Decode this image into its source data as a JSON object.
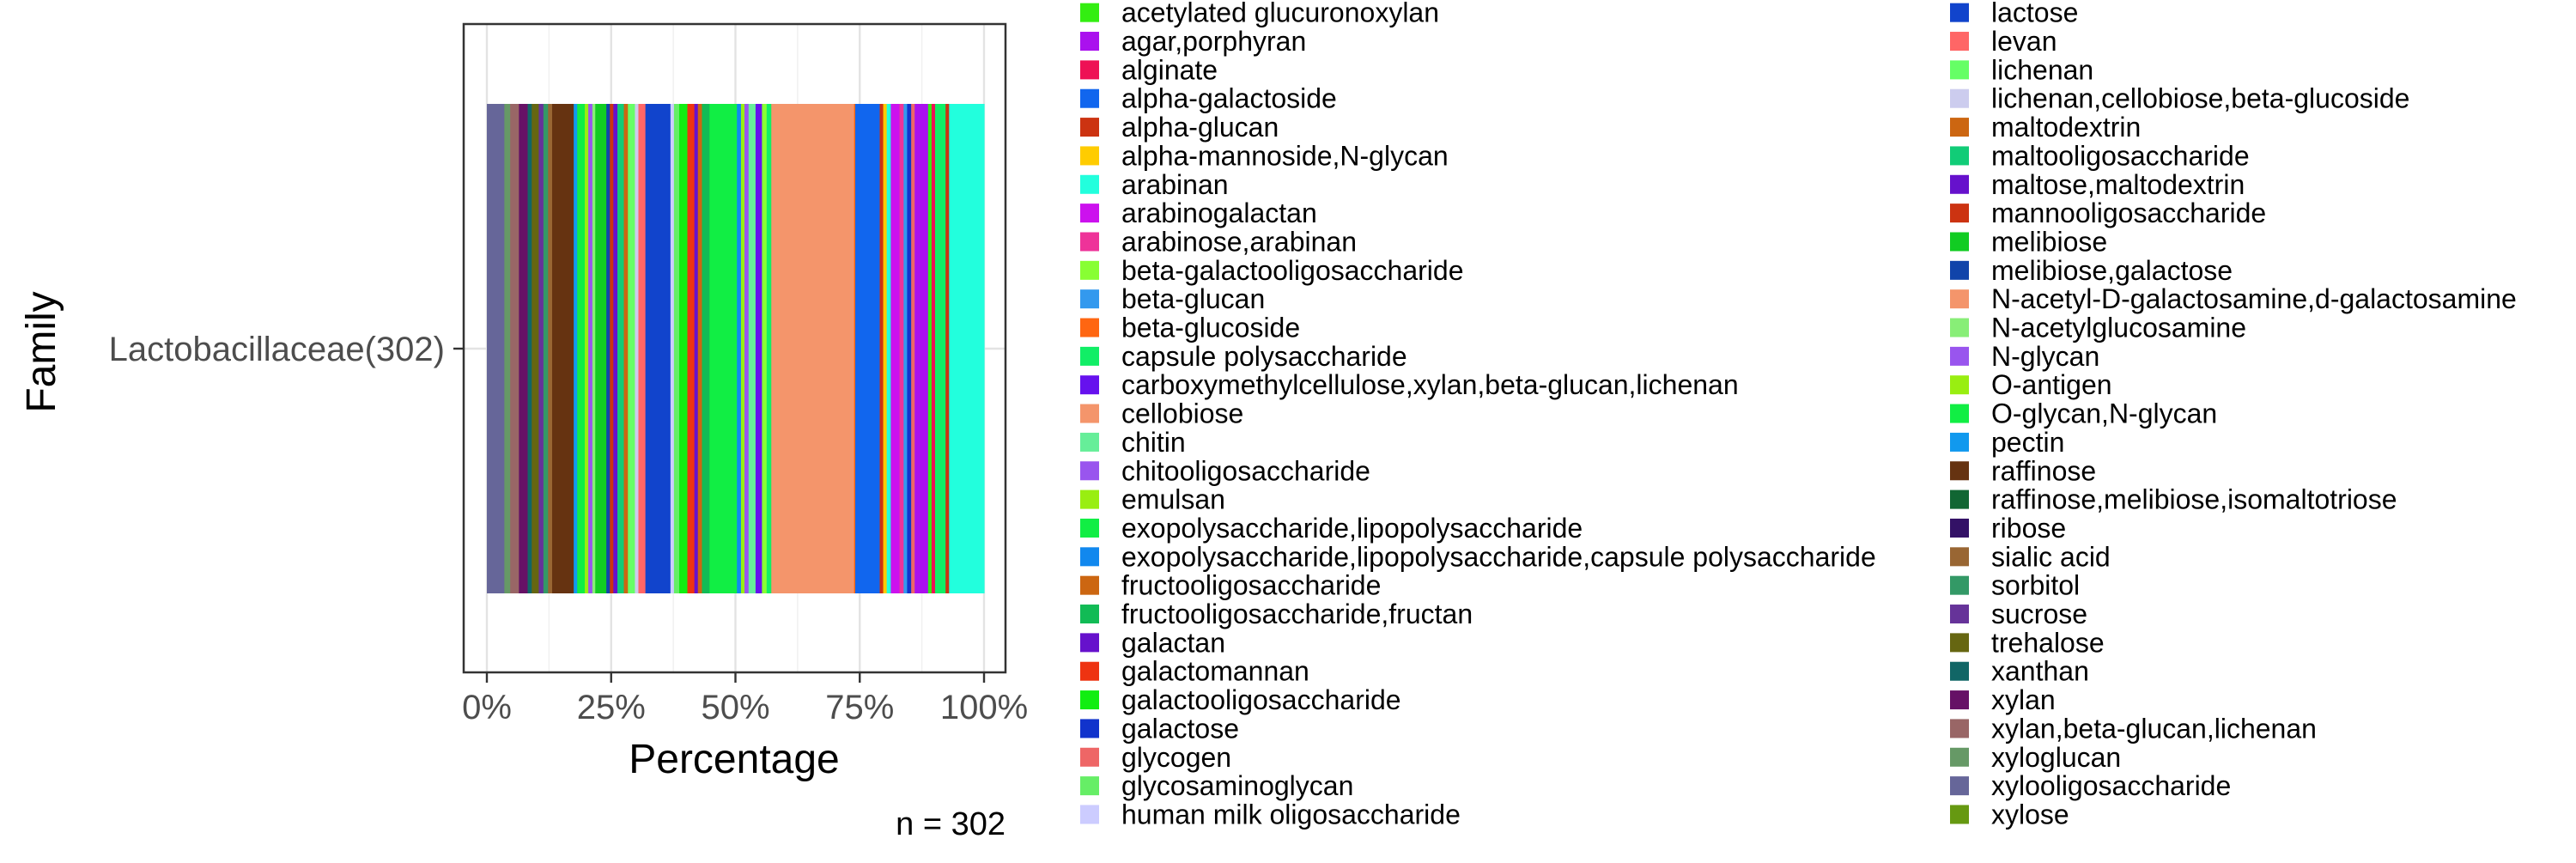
{
  "chart_data": {
    "type": "bar",
    "orientation": "horizontal",
    "stacking": "fill",
    "grid": true,
    "legend_position": "right",
    "xlabel": "Percentage",
    "ylabel": "Family",
    "xlim": [
      0,
      100
    ],
    "x_ticks": [
      "0%",
      "25%",
      "50%",
      "75%",
      "100%"
    ],
    "categories": [
      "Lactobacillaceae(302)"
    ],
    "caption": "n = 302",
    "legend_columns": 2,
    "legend": [
      {
        "name": "acetylated glucuronoxylan",
        "color": "#33ee11"
      },
      {
        "name": "agar,porphyran",
        "color": "#aa11ee"
      },
      {
        "name": "alginate",
        "color": "#ee1155"
      },
      {
        "name": "alpha-galactoside",
        "color": "#1166ee"
      },
      {
        "name": "alpha-glucan",
        "color": "#cc3311"
      },
      {
        "name": "alpha-mannoside,N-glycan",
        "color": "#ffcc00"
      },
      {
        "name": "arabinan",
        "color": "#22ffdd"
      },
      {
        "name": "arabinogalactan",
        "color": "#cc11ee"
      },
      {
        "name": "arabinose,arabinan",
        "color": "#ee3399"
      },
      {
        "name": "beta-galactooligosaccharide",
        "color": "#88ff33"
      },
      {
        "name": "beta-glucan",
        "color": "#3399ee"
      },
      {
        "name": "beta-glucoside",
        "color": "#ff6611"
      },
      {
        "name": "capsule polysaccharide",
        "color": "#11ee66"
      },
      {
        "name": "carboxymethylcellulose,xylan,beta-glucan,lichenan",
        "color": "#6611ee"
      },
      {
        "name": "cellobiose",
        "color": "#f4956b"
      },
      {
        "name": "chitin",
        "color": "#66ee99"
      },
      {
        "name": "chitooligosaccharide",
        "color": "#9955ee"
      },
      {
        "name": "emulsan",
        "color": "#99ee11"
      },
      {
        "name": "exopolysaccharide,lipopolysaccharide",
        "color": "#11ee44"
      },
      {
        "name": "exopolysaccharide,lipopolysaccharide,capsule polysaccharide",
        "color": "#1188ee"
      },
      {
        "name": "fructooligosaccharide",
        "color": "#cc6611"
      },
      {
        "name": "fructooligosaccharide,fructan",
        "color": "#11bb55"
      },
      {
        "name": "galactan",
        "color": "#6611cc"
      },
      {
        "name": "galactomannan",
        "color": "#ee3311"
      },
      {
        "name": "galactooligosaccharide",
        "color": "#11ee11"
      },
      {
        "name": "galactose",
        "color": "#1133cc"
      },
      {
        "name": "glycogen",
        "color": "#ee6666"
      },
      {
        "name": "glycosaminoglycan",
        "color": "#66ee66"
      },
      {
        "name": "human milk oligosaccharide",
        "color": "#ccccff"
      },
      {
        "name": "lactose",
        "color": "#1144cc"
      },
      {
        "name": "levan",
        "color": "#ff6666"
      },
      {
        "name": "lichenan",
        "color": "#66ff66"
      },
      {
        "name": "lichenan,cellobiose,beta-glucoside",
        "color": "#ccccee"
      },
      {
        "name": "maltodextrin",
        "color": "#cc6611"
      },
      {
        "name": "maltooligosaccharide",
        "color": "#11cc77"
      },
      {
        "name": "maltose,maltodextrin",
        "color": "#6611cc"
      },
      {
        "name": "mannooligosaccharide",
        "color": "#cc3311"
      },
      {
        "name": "melibiose",
        "color": "#11cc22"
      },
      {
        "name": "melibiose,galactose",
        "color": "#1144aa"
      },
      {
        "name": "N-acetyl-D-galactosamine,d-galactosamine",
        "color": "#f4956b"
      },
      {
        "name": "N-acetylglucosamine",
        "color": "#88ee77"
      },
      {
        "name": "N-glycan",
        "color": "#9955ee"
      },
      {
        "name": "O-antigen",
        "color": "#99ee11"
      },
      {
        "name": "O-glycan,N-glycan",
        "color": "#11ee44"
      },
      {
        "name": "pectin",
        "color": "#1199ee"
      },
      {
        "name": "raffinose",
        "color": "#663311"
      },
      {
        "name": "raffinose,melibiose,isomaltotriose",
        "color": "#116633"
      },
      {
        "name": "ribose",
        "color": "#331166"
      },
      {
        "name": "sialic acid",
        "color": "#996633"
      },
      {
        "name": "sorbitol",
        "color": "#339966"
      },
      {
        "name": "sucrose",
        "color": "#663399"
      },
      {
        "name": "trehalose",
        "color": "#666611"
      },
      {
        "name": "xanthan",
        "color": "#116666"
      },
      {
        "name": "xylan",
        "color": "#661166"
      },
      {
        "name": "xylan,beta-glucan,lichenan",
        "color": "#996666"
      },
      {
        "name": "xyloglucan",
        "color": "#669966"
      },
      {
        "name": "xylooligosaccharide",
        "color": "#666699"
      },
      {
        "name": "xylose",
        "color": "#669911"
      }
    ],
    "segments": [
      {
        "name": "xylooligosaccharide",
        "value": 3
      },
      {
        "name": "xyloglucan",
        "value": 1
      },
      {
        "name": "xylan,beta-glucan,lichenan",
        "value": 1.5
      },
      {
        "name": "xylan",
        "value": 1.5
      },
      {
        "name": "xanthan",
        "value": 0.7
      },
      {
        "name": "trehalose",
        "value": 1.2
      },
      {
        "name": "sucrose",
        "value": 0.8
      },
      {
        "name": "sorbitol",
        "value": 0.8
      },
      {
        "name": "sialic acid",
        "value": 0.7
      },
      {
        "name": "raffinose",
        "value": 3.7
      },
      {
        "name": "pectin",
        "value": 0.6
      },
      {
        "name": "O-glycan,N-glycan",
        "value": 1.3
      },
      {
        "name": "O-antigen",
        "value": 0.6
      },
      {
        "name": "N-glycan",
        "value": 0.7
      },
      {
        "name": "N-acetylglucosamine",
        "value": 0.5
      },
      {
        "name": "melibiose",
        "value": 1.9
      },
      {
        "name": "melibiose,galactose",
        "value": 0.6
      },
      {
        "name": "mannooligosaccharide",
        "value": 0.6
      },
      {
        "name": "maltose,maltodextrin",
        "value": 0.7
      },
      {
        "name": "maltooligosaccharide",
        "value": 1.1
      },
      {
        "name": "maltodextrin",
        "value": 0.7
      },
      {
        "name": "lichenan",
        "value": 1.2
      },
      {
        "name": "lichenan,cellobiose,beta-glucoside",
        "value": 0.6
      },
      {
        "name": "levan",
        "value": 1.2
      },
      {
        "name": "lactose",
        "value": 4.3
      },
      {
        "name": "human milk oligosaccharide",
        "value": 0.6
      },
      {
        "name": "glycosaminoglycan",
        "value": 0.9
      },
      {
        "name": "galactooligosaccharide",
        "value": 1.4
      },
      {
        "name": "galactomannan",
        "value": 1.2
      },
      {
        "name": "galactan",
        "value": 0.6
      },
      {
        "name": "fructooligosaccharide",
        "value": 0.7
      },
      {
        "name": "fructooligosaccharide,fructan",
        "value": 1.3
      },
      {
        "name": "exopolysaccharide,lipopolysaccharide",
        "value": 4.7
      },
      {
        "name": "exopolysaccharide,lipopolysaccharide,capsule polysaccharide",
        "value": 0.7
      },
      {
        "name": "emulsan",
        "value": 0.6
      },
      {
        "name": "chitooligosaccharide",
        "value": 0.7
      },
      {
        "name": "chitin",
        "value": 1.2
      },
      {
        "name": "carboxymethylcellulose,xylan,beta-glucan,lichenan",
        "value": 1.1
      },
      {
        "name": "beta-galactooligosaccharide",
        "value": 0.8
      },
      {
        "name": "capsule polysaccharide",
        "value": 0.8
      },
      {
        "name": "cellobiose",
        "value": 14.2
      },
      {
        "name": "beta-glucoside",
        "value": 0.2
      },
      {
        "name": "alpha-galactoside",
        "value": 4.2
      },
      {
        "name": "alpha-glucan",
        "value": 0.6
      },
      {
        "name": "alpha-mannoside,N-glycan",
        "value": 0.6
      },
      {
        "name": "arabinan",
        "value": 0.7
      },
      {
        "name": "arabinogalactan",
        "value": 1.5
      },
      {
        "name": "arabinose,arabinan",
        "value": 0.7
      },
      {
        "name": "beta-glucan",
        "value": 0.6
      },
      {
        "name": "galactose",
        "value": 0.7
      },
      {
        "name": "glycogen",
        "value": 0.6
      },
      {
        "name": "agar,porphyran",
        "value": 2.3
      },
      {
        "name": "acetylated glucuronoxylan",
        "value": 0.6
      },
      {
        "name": "alginate",
        "value": 0.6
      },
      {
        "name": "capsule polysaccharide",
        "value": 1.8
      },
      {
        "name": "alpha-glucan",
        "value": 0.6
      },
      {
        "name": "arabinan",
        "value": 6.0
      }
    ]
  }
}
